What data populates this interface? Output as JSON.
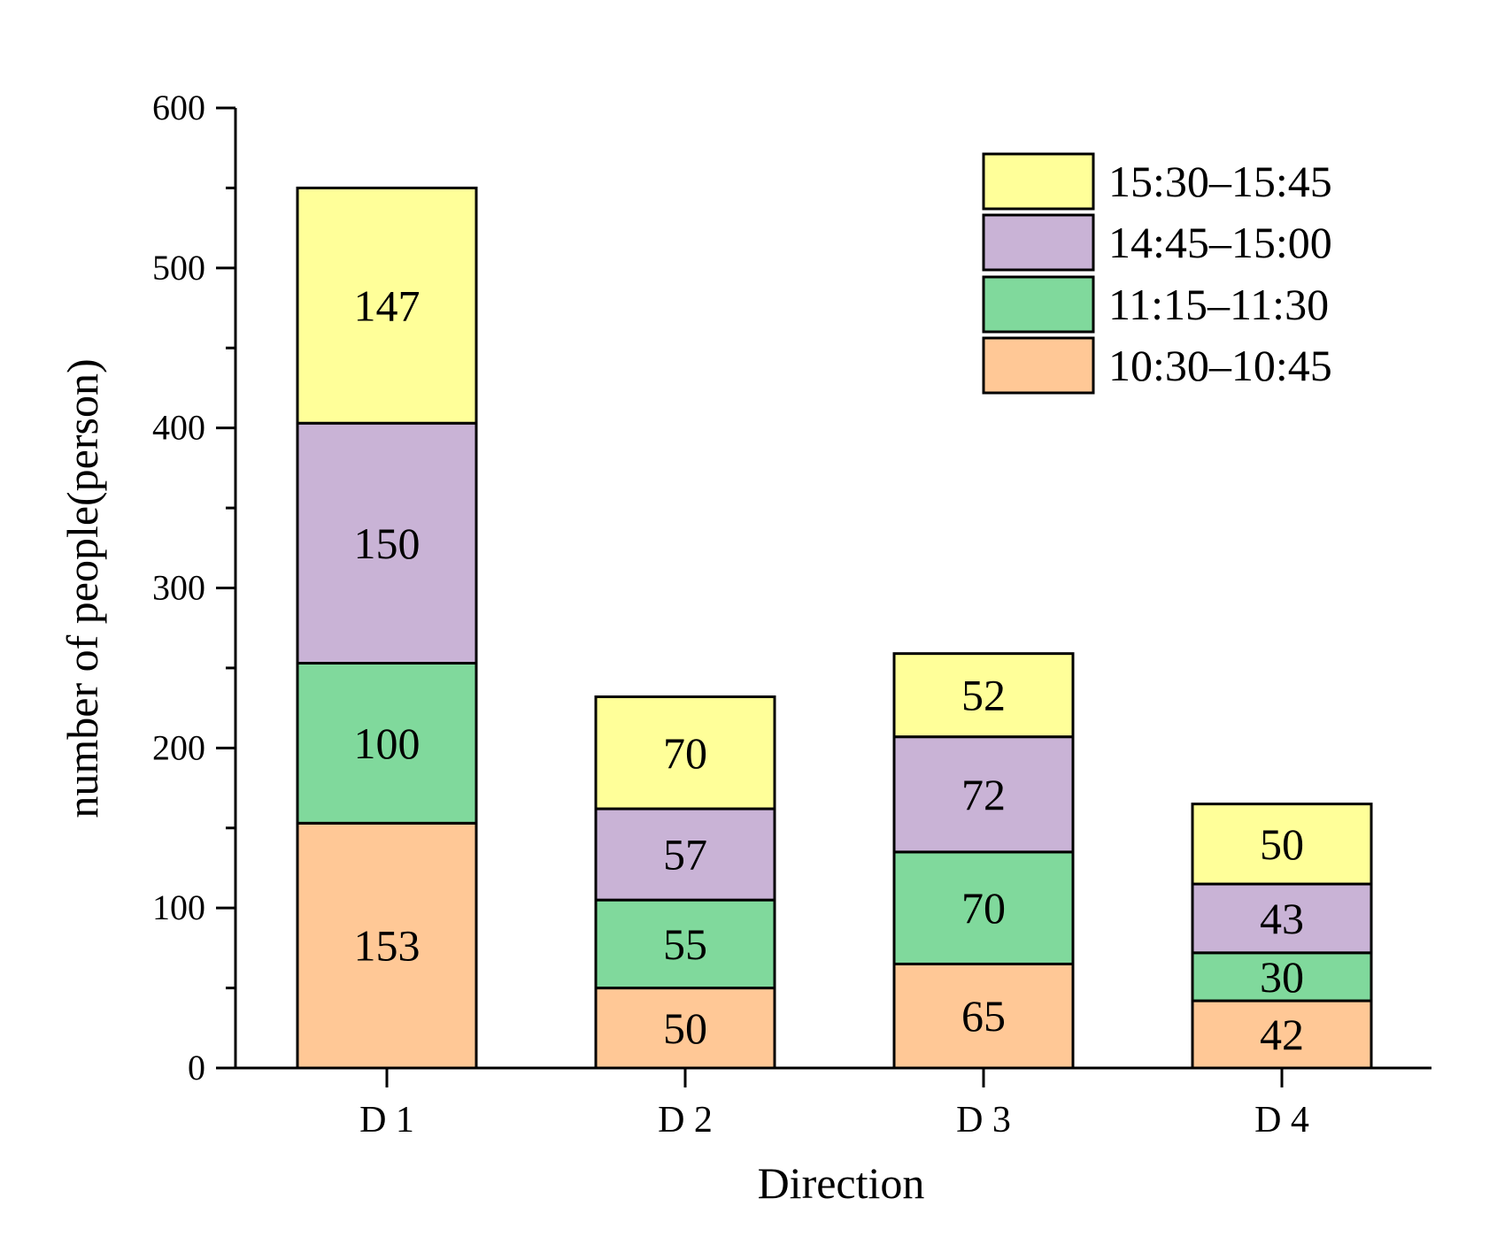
{
  "chart_data": {
    "type": "bar",
    "stacked": true,
    "title": "",
    "xlabel": "Direction",
    "ylabel": "number of people(person)",
    "ylim": [
      0,
      600
    ],
    "yticks": [
      0,
      100,
      200,
      300,
      400,
      500,
      600
    ],
    "categories": [
      "D 1",
      "D 2",
      "D 3",
      "D 4"
    ],
    "series": [
      {
        "name": "10:30–10:45",
        "color": "#FFC896",
        "values": [
          153,
          50,
          65,
          42
        ]
      },
      {
        "name": "11:15–11:30",
        "color": "#80D99C",
        "values": [
          100,
          55,
          70,
          30
        ]
      },
      {
        "name": "14:45–15:00",
        "color": "#C9B3D6",
        "values": [
          150,
          57,
          72,
          43
        ]
      },
      {
        "name": "15:30–15:45",
        "color": "#FFFF99",
        "values": [
          147,
          70,
          52,
          50
        ]
      }
    ],
    "legend_position": "top-right",
    "legend_order": [
      3,
      2,
      1,
      0
    ]
  }
}
